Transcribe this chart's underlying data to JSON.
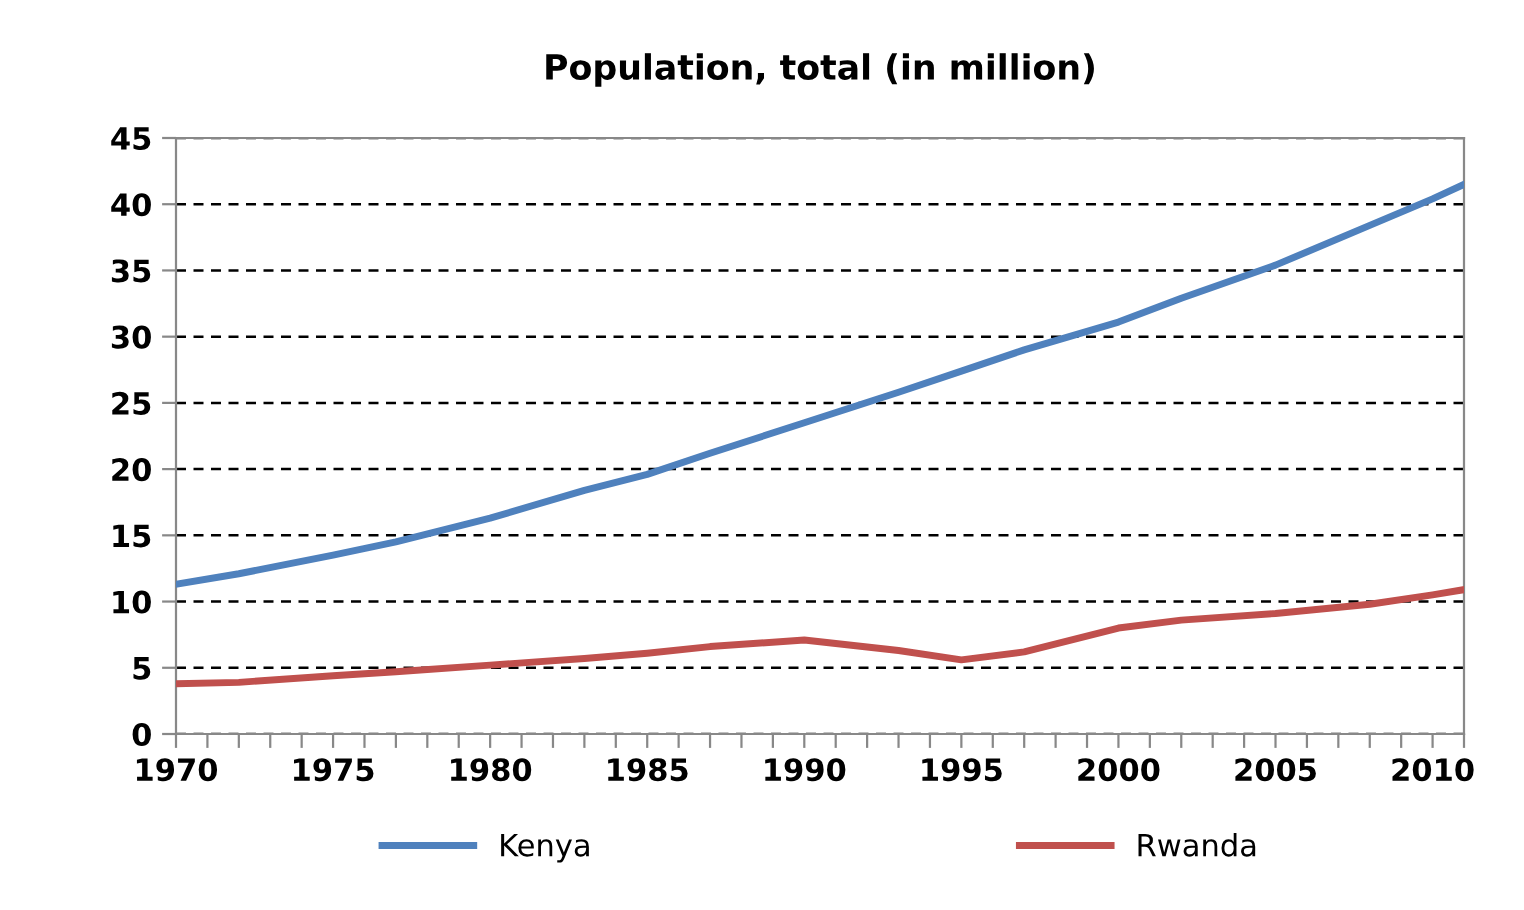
{
  "chart_data": {
    "type": "line",
    "title": "Population, total (in million)",
    "x": [
      1970,
      1972,
      1975,
      1977,
      1980,
      1983,
      1985,
      1987,
      1990,
      1993,
      1995,
      1997,
      2000,
      2002,
      2005,
      2008,
      2010,
      2011
    ],
    "series": [
      {
        "name": "Kenya",
        "color": "#4f81bd",
        "values": [
          11.3,
          12.1,
          13.5,
          14.5,
          16.3,
          18.4,
          19.6,
          21.2,
          23.5,
          25.8,
          27.4,
          29.0,
          31.1,
          32.9,
          35.4,
          38.4,
          40.4,
          41.5
        ]
      },
      {
        "name": "Rwanda",
        "color": "#c0504d",
        "values": [
          3.8,
          3.9,
          4.4,
          4.7,
          5.2,
          5.7,
          6.1,
          6.6,
          7.1,
          6.3,
          5.6,
          6.2,
          8.0,
          8.6,
          9.1,
          9.8,
          10.5,
          10.9
        ]
      }
    ],
    "xlim": [
      1970,
      2011
    ],
    "xticks": [
      1970,
      {
        "value": 1971,
        "label": null
      },
      {
        "value": 1972,
        "label": null
      },
      {
        "value": 1973,
        "label": null
      },
      {
        "value": 1974,
        "label": null
      },
      1975,
      {
        "value": 1976,
        "label": null
      },
      {
        "value": 1977,
        "label": null
      },
      {
        "value": 1978,
        "label": null
      },
      {
        "value": 1979,
        "label": null
      },
      1980,
      {
        "value": 1981,
        "label": null
      },
      {
        "value": 1982,
        "label": null
      },
      {
        "value": 1983,
        "label": null
      },
      {
        "value": 1984,
        "label": null
      },
      1985,
      {
        "value": 1986,
        "label": null
      },
      {
        "value": 1987,
        "label": null
      },
      {
        "value": 1988,
        "label": null
      },
      {
        "value": 1989,
        "label": null
      },
      1990,
      {
        "value": 1991,
        "label": null
      },
      {
        "value": 1992,
        "label": null
      },
      {
        "value": 1993,
        "label": null
      },
      {
        "value": 1994,
        "label": null
      },
      1995,
      {
        "value": 1996,
        "label": null
      },
      {
        "value": 1997,
        "label": null
      },
      {
        "value": 1998,
        "label": null
      },
      {
        "value": 1999,
        "label": null
      },
      2000,
      {
        "value": 2001,
        "label": null
      },
      {
        "value": 2002,
        "label": null
      },
      {
        "value": 2003,
        "label": null
      },
      {
        "value": 2004,
        "label": null
      },
      2005,
      {
        "value": 2006,
        "label": null
      },
      {
        "value": 2007,
        "label": null
      },
      {
        "value": 2008,
        "label": null
      },
      {
        "value": 2009,
        "label": null
      },
      2010,
      {
        "value": 2011,
        "label": null
      }
    ],
    "ylim": [
      0,
      45
    ],
    "yticks": [
      0,
      5,
      10,
      15,
      20,
      25,
      30,
      35,
      40,
      45
    ],
    "grid": "y",
    "legend": "bottom",
    "marker": "none",
    "line_style": "solid"
  }
}
